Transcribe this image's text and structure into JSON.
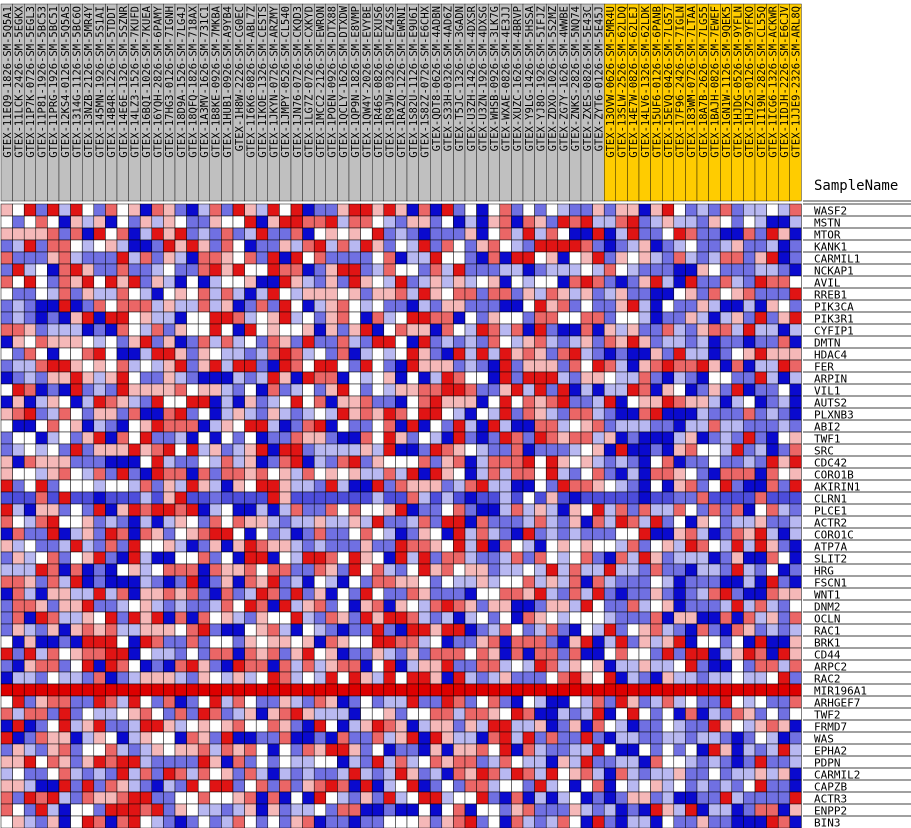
{
  "chart_data": {
    "type": "heatmap",
    "column_header": "SampleName",
    "samples": [
      "GTEX-11EQ9-1826-SM-5Q5A1",
      "GTEX-11LCK-2426-SM-5EGKX",
      "GTEX-11P7K-0726-SM-5EGL3",
      "GTEX-11P81-1926-SM-5BC53",
      "GTEX-11PRG-1926-SM-5BC51",
      "GTEX-12KS4-0126-SM-5Q5AS",
      "GTEX-1314G-1126-SM-5BC6O",
      "GTEX-13NZB-2126-SM-5MR4Y",
      "GTEX-145MN-1926-SM-5S1AI",
      "GTEX-14B4R-1226-SM-5TDDT",
      "GTEX-14E6E-1326-SM-5SZNR",
      "GTEX-14LZ3-1526-SM-7KUFD",
      "GTEX-16BQI-1026-SM-7KUEA",
      "GTEX-16YQH-2826-SM-6PAMY",
      "GTEX-17HG3-0126-SM-7IGNH",
      "GTEX-18D9A-1526-SM-7LG4J",
      "GTEX-18QFQ-1826-SM-718AX",
      "GTEX-1A3MV-1626-SM-731C1",
      "GTEX-1B8KE-0926-SM-7MKBA",
      "GTEX-1HUB1-0926-SM-A9YB4",
      "GTEX-1H8W-2226-SM-CG0EC",
      "GTEX-1I6K6-0826-SM-ABL7Z",
      "GTEX-1IKOE-1326-SM-CESTS",
      "GTEX-1JKYN-0726-SM-ARZMY",
      "GTEX-1JMPY-0526-SM-CL540",
      "GTEX-1JN76-0726-SM-CKQD3",
      "GTEX-1LG7Z-0726-SM-CXKYD",
      "GTEX-1MCC2-2126-SM-EWRON",
      "GTEX-1POEN-0926-SM-DTX88",
      "GTEX-1QCLY-1626-SM-DTXDW",
      "GTEX-1QP9N-1826-SM-E8VMP",
      "GTEX-1QW4Y-2026-SM-EVYBE",
      "GTEX-1R46S-0826-SM-EXUS6",
      "GTEX-1R9JW-0326-SM-EZ4SS",
      "GTEX-1RAZQ-1226-SM-EWRNI",
      "GTEX-1S82U-1126-SM-E9U6I",
      "GTEX-1S82Z-0726-SM-E6CHX",
      "GTEX-QDT8-0626-SM-4ADBN",
      "GTEX-S33H-0326-SM-4AD6Z",
      "GTEX-T5JC-1326-SM-3GADN",
      "GTEX-U3ZH-1426-SM-4DXSR",
      "GTEX-U3ZN-1926-SM-4DXSG",
      "GTEX-WHSB-0926-SM-3LK7G",
      "GTEX-WXAE-0826-SM-4E3JJ",
      "GTEX-XUZC-1626-SM-4BRVP",
      "GTEX-Y9LG-1426-SM-5HSSA",
      "GTEX-YJ8O-1926-SM-5IFJZ",
      "GTEX-ZDXO-1026-SM-5S2MZ",
      "GTEX-ZG7Y-1626-SM-4WWBE",
      "GTEX-ZNKS-2826-SM-5NQ74",
      "GTEX-ZXES-0826-SM-5E43C",
      "GTEX-ZYT6-0126-SM-5E45J",
      "GTEX-13OVW-0626-SM-5MR4U",
      "GTEX-13SLW-2526-SM-62LDQ",
      "GTEX-14E7W-0826-SM-62LEJ",
      "GTEX-14LV6-1326-SM-62LDK",
      "GTEX-15UF6-0126-SM-6PANB",
      "GTEX-15EVQ-0426-SM-7LG57",
      "GTEX-17F96-2426-SM-7IGLN",
      "GTEX-183WM-0726-SM-7LTAA",
      "GTEX-18A7B-2626-SM-7LG55",
      "GTEX-1BAJH-0826-SM-7EWEF",
      "GTEX-1GN1W-1126-SM-9QEK5",
      "GTEX-1HJDG-0526-SM-9YFLN",
      "GTEX-1HJZS-0126-SM-9YFKO",
      "GTEX-1I19N-2826-SM-CL55Q",
      "GTEX-1ICG6-1326-SM-ACKWR",
      "GTEX-1IDJH-2226-SM-E6CJV",
      "GTEX-1JJE9-2326-SM-ARL8Q"
    ],
    "highlighted_from": 52,
    "genes": [
      "WASF2",
      "MSTN",
      "MTOR",
      "KANK1",
      "CARMIL1",
      "NCKAP1",
      "AVIL",
      "RREB1",
      "PIK3CA",
      "PIK3R1",
      "CYFIP1",
      "DMTN",
      "HDAC4",
      "FER",
      "ARPIN",
      "VIL1",
      "AUTS2",
      "PLXNB3",
      "ABI2",
      "TWF1",
      "SRC",
      "CDC42",
      "CORO1B",
      "AKIRIN1",
      "CLRN1",
      "PLCE1",
      "ACTR2",
      "CORO1C",
      "ATP7A",
      "SLIT2",
      "HRG",
      "FSCN1",
      "WNT1",
      "DNM2",
      "OCLN",
      "RAC1",
      "BRK1",
      "CD44",
      "ARPC2",
      "RAC2",
      "MIR196A1",
      "ARHGEF7",
      "TWF2",
      "FRMD7",
      "WAS",
      "EPHA2",
      "PDPN",
      "CARMIL2",
      "CAPZB",
      "ACTR3",
      "ENPP2",
      "BIN3"
    ],
    "uniform_rows": {
      "24": 0.15,
      "40": 1.0
    },
    "value_range": [
      0,
      1
    ],
    "seed": 911828,
    "colors": {
      "low": "#0000cc",
      "mid": "#ffffff",
      "high": "#dd0000",
      "header_normal": "#c0c0c0",
      "header_highlight": "#ffcc00"
    }
  }
}
